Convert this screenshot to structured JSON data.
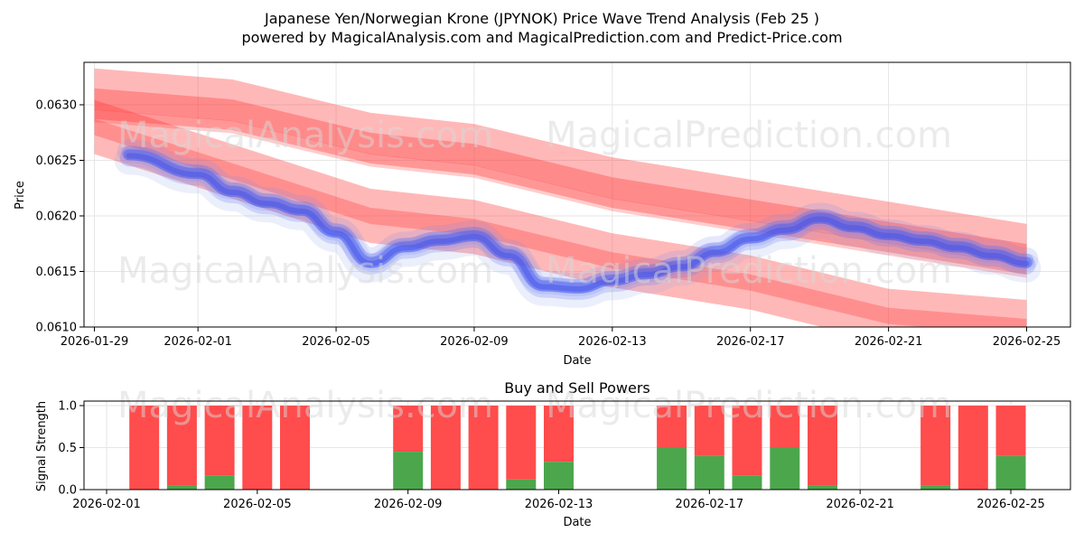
{
  "header": {
    "title": "Japanese Yen/Norwegian Krone (JPYNOK) Price Wave Trend Analysis (Feb 25 )",
    "subtitle": "powered by MagicalAnalysis.com and MagicalPrediction.com and Predict-Price.com"
  },
  "watermarks": [
    "MagicalAnalysis.com",
    "MagicalPrediction.com"
  ],
  "chart_data": [
    {
      "type": "area",
      "name": "price-wave",
      "xlabel": "Date",
      "ylabel": "Price",
      "xlim": [
        "2026-01-29",
        "2026-02-26"
      ],
      "ylim": [
        0.061,
        0.0634
      ],
      "xticks": [
        "2026-01-29",
        "2026-02-01",
        "2026-02-05",
        "2026-02-09",
        "2026-02-13",
        "2026-02-17",
        "2026-02-21",
        "2026-02-25"
      ],
      "yticks": [
        "0.0610",
        "0.0615",
        "0.0620",
        "0.0625",
        "0.0630"
      ],
      "grid": true,
      "series": [
        {
          "name": "blue price wave (price history)",
          "color": "#4455ee",
          "x": [
            "2026-01-30",
            "2026-02-01",
            "2026-02-02",
            "2026-02-03",
            "2026-02-04",
            "2026-02-05",
            "2026-02-06",
            "2026-02-07",
            "2026-02-08",
            "2026-02-09",
            "2026-02-10",
            "2026-02-11",
            "2026-02-12",
            "2026-02-13",
            "2026-02-14",
            "2026-02-15",
            "2026-02-16",
            "2026-02-17",
            "2026-02-18",
            "2026-02-19",
            "2026-02-20",
            "2026-02-21",
            "2026-02-22",
            "2026-02-23",
            "2026-02-24",
            "2026-02-25"
          ],
          "values": [
            0.06255,
            0.06238,
            0.06222,
            0.06212,
            0.06205,
            0.06185,
            0.06158,
            0.06172,
            0.06178,
            0.06182,
            0.06165,
            0.06137,
            0.06135,
            0.06142,
            0.06148,
            0.06155,
            0.06168,
            0.0618,
            0.06188,
            0.06198,
            0.0619,
            0.06183,
            0.06178,
            0.06172,
            0.06165,
            0.06158
          ]
        },
        {
          "name": "red trend band upper",
          "color": "#ff3333",
          "x": [
            "2026-01-29",
            "2026-02-02",
            "2026-02-06",
            "2026-02-09",
            "2026-02-13",
            "2026-02-17",
            "2026-02-21",
            "2026-02-25"
          ],
          "values": [
            0.0631,
            0.063,
            0.0627,
            0.0626,
            0.0623,
            0.0621,
            0.0619,
            0.0617
          ]
        },
        {
          "name": "red trend band lower",
          "color": "#ff3333",
          "x": [
            "2026-01-29",
            "2026-02-02",
            "2026-02-06",
            "2026-02-09",
            "2026-02-13",
            "2026-02-17",
            "2026-02-21",
            "2026-02-25"
          ],
          "values": [
            0.0628,
            0.0624,
            0.062,
            0.0619,
            0.0616,
            0.0614,
            0.0611,
            0.061
          ]
        }
      ]
    },
    {
      "type": "bar",
      "name": "buy-sell-powers",
      "title": "Buy and Sell Powers",
      "xlabel": "Date",
      "ylabel": "Signal Strength",
      "xlim": [
        "2026-01-31",
        "2026-02-26"
      ],
      "ylim": [
        0,
        1.05
      ],
      "xticks": [
        "2026-02-01",
        "2026-02-05",
        "2026-02-09",
        "2026-02-13",
        "2026-02-17",
        "2026-02-21",
        "2026-02-25"
      ],
      "yticks": [
        "0.0",
        "0.5",
        "1.0"
      ],
      "grid": true,
      "categories": [
        "2026-02-02",
        "2026-02-03",
        "2026-02-04",
        "2026-02-05",
        "2026-02-06",
        "2026-02-09",
        "2026-02-10",
        "2026-02-11",
        "2026-02-12",
        "2026-02-13",
        "2026-02-16",
        "2026-02-17",
        "2026-02-18",
        "2026-02-19",
        "2026-02-20",
        "2026-02-23",
        "2026-02-24",
        "2026-02-25"
      ],
      "series": [
        {
          "name": "Buy",
          "color": "#4ca64c",
          "values": [
            0.0,
            0.05,
            0.17,
            0.0,
            0.0,
            0.45,
            0.0,
            0.0,
            0.12,
            0.33,
            0.5,
            0.4,
            0.17,
            0.5,
            0.05,
            0.05,
            0.0,
            0.4
          ]
        },
        {
          "name": "Sell",
          "color": "#ff4c4c",
          "values": [
            1.0,
            0.95,
            0.83,
            1.0,
            1.0,
            0.55,
            1.0,
            1.0,
            0.88,
            0.67,
            0.5,
            0.6,
            0.83,
            0.5,
            0.95,
            0.95,
            1.0,
            0.6
          ]
        }
      ]
    }
  ]
}
